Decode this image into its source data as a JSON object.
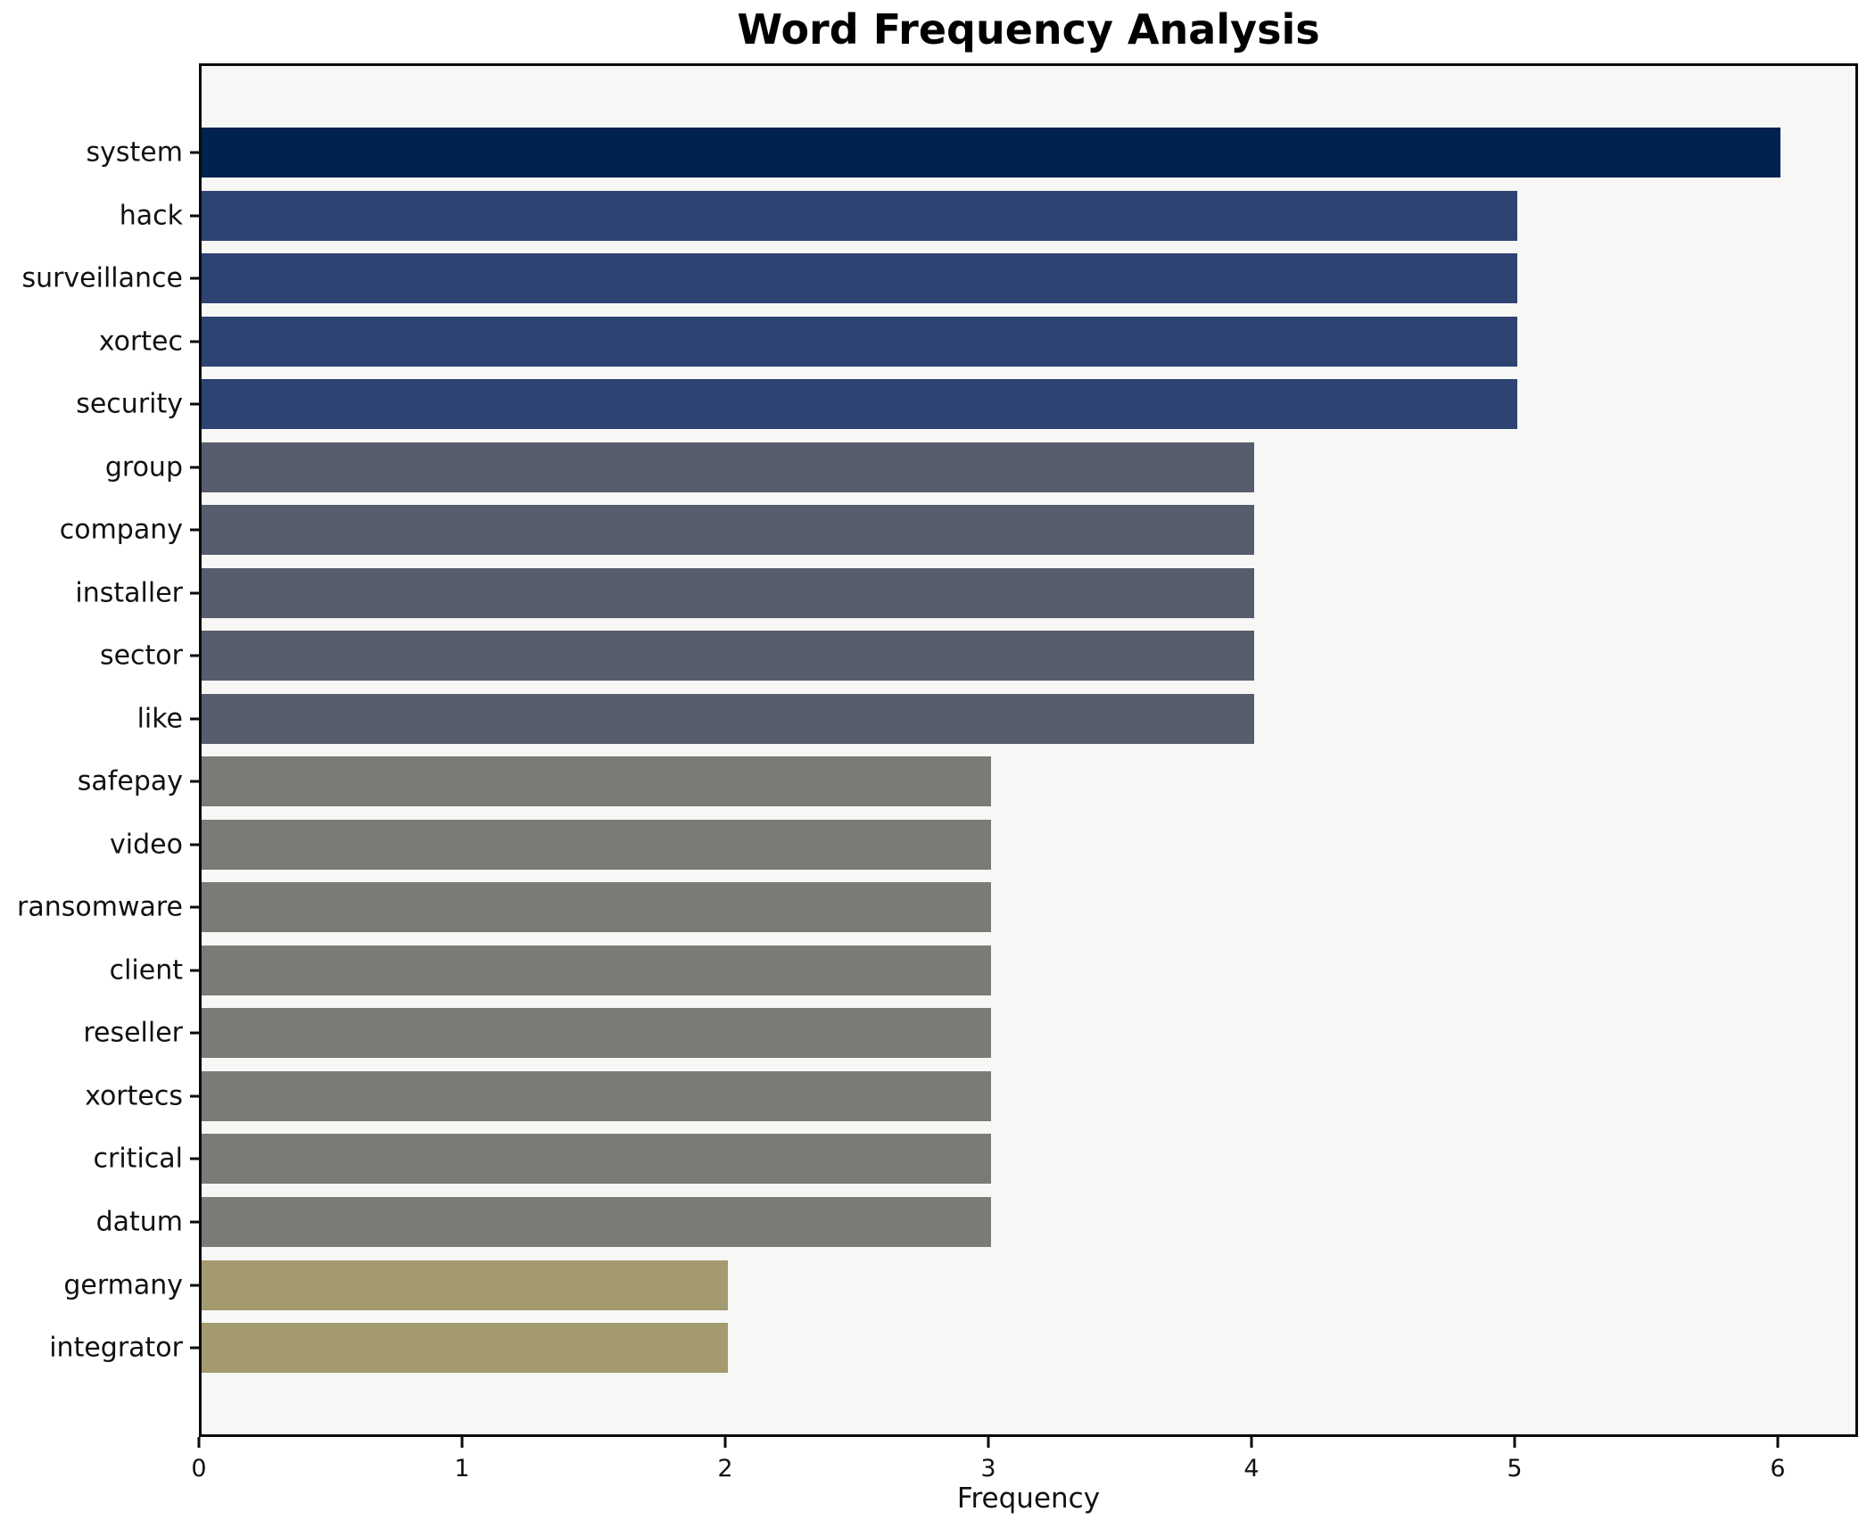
{
  "chart_data": {
    "type": "bar",
    "orientation": "horizontal",
    "title": "Word Frequency Analysis",
    "xlabel": "Frequency",
    "ylabel": "",
    "categories": [
      "system",
      "hack",
      "surveillance",
      "xortec",
      "security",
      "group",
      "company",
      "installer",
      "sector",
      "like",
      "safepay",
      "video",
      "ransomware",
      "client",
      "reseller",
      "xortecs",
      "critical",
      "datum",
      "germany",
      "integrator"
    ],
    "values": [
      6,
      5,
      5,
      5,
      5,
      4,
      4,
      4,
      4,
      4,
      3,
      3,
      3,
      3,
      3,
      3,
      3,
      3,
      2,
      2
    ],
    "xticks": [
      0,
      1,
      2,
      3,
      4,
      5,
      6
    ],
    "xlim": [
      0,
      6.3
    ],
    "grid": false,
    "legend": null,
    "value_colors": {
      "6": "#00224e",
      "5": "#2e4372",
      "4": "#575d6d",
      "3": "#7b7a77",
      "2": "#a39a70"
    },
    "plot_background": "#f7f7f6",
    "spine_color": "#0a0a0a",
    "text_color": "#111111"
  }
}
